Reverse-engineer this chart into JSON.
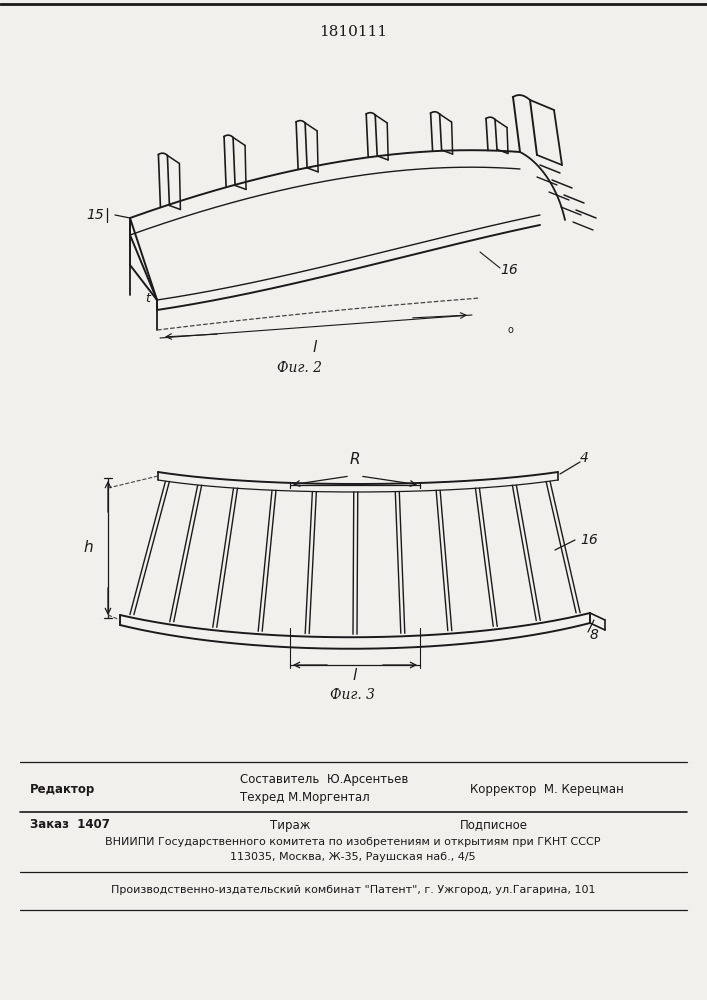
{
  "patent_number": "1810111",
  "fig2_label": "Фиг. 2",
  "fig3_label": "Фиг. 3",
  "label_15": "15",
  "label_16_fig2": "16",
  "label_t": "t",
  "label_l_fig2": "l",
  "label_R": "R",
  "label_h": "h",
  "label_l_fig3": "l",
  "label_4": "4",
  "label_16_fig3": "16",
  "label_8": "8",
  "footer_line1_left": "Редактор",
  "footer_line1_mid1": "Составитель  Ю.Арсентьев",
  "footer_line1_mid2": "Техред М.Моргентал",
  "footer_line1_right": "Корректор  М. Керецман",
  "footer_line2_left": "Заказ  1407",
  "footer_line2_mid": "Тираж",
  "footer_line2_right": "Подписное",
  "footer_line3": "ВНИИПИ Государственного комитета по изобретениям и открытиям при ГКНТ СССР",
  "footer_line4": "113035, Москва, Ж-35, Раушская наб., 4/5",
  "footer_line5": "Производственно-издательский комбинат \"Патент\", г. Ужгород, ул.Гагарина, 101",
  "bg_color": "#f2f0ec",
  "line_color": "#1a1a1a",
  "text_color": "#1a1a1a"
}
